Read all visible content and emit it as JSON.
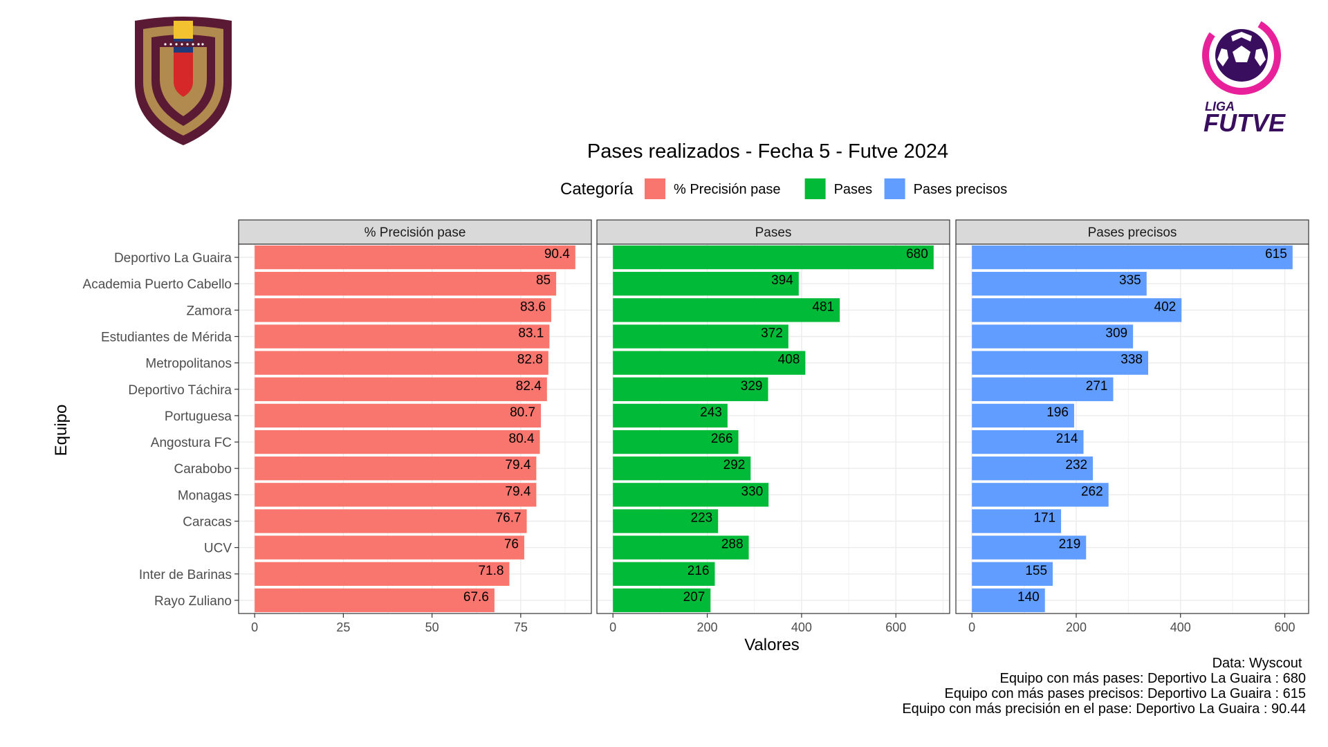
{
  "chart_data": {
    "type": "bar",
    "title": "Pases realizados - Fecha 5 - Futve 2024",
    "xlabel": "Valores",
    "ylabel": "Equipo",
    "legend": {
      "title": "Categoría",
      "placement": "top",
      "entries": [
        {
          "name": "% Precisión pase",
          "color": "#F8766D"
        },
        {
          "name": "Pases",
          "color": "#00BA38"
        },
        {
          "name": "Pases precisos",
          "color": "#619CFF"
        }
      ]
    },
    "categories": [
      "Deportivo La Guaira",
      "Academia Puerto Cabello",
      "Zamora",
      "Estudiantes de Mérida",
      "Metropolitanos",
      "Deportivo Táchira",
      "Portuguesa",
      "Angostura FC",
      "Carabobo",
      "Monagas",
      "Caracas",
      "UCV",
      "Inter de Barinas",
      "Rayo Zuliano"
    ],
    "series": [
      {
        "name": "% Precisión pase",
        "color": "#F8766D",
        "values": [
          90.4,
          85,
          83.6,
          83.1,
          82.8,
          82.4,
          80.7,
          80.4,
          79.4,
          79.4,
          76.7,
          76,
          71.8,
          67.6
        ],
        "labels": [
          "90.4",
          "85",
          "83.6",
          "83.1",
          "82.8",
          "82.4",
          "80.7",
          "80.4",
          "79.4",
          "79.4",
          "76.7",
          "76",
          "71.8",
          "67.6"
        ],
        "xlim": [
          -4.52,
          94.92
        ],
        "ticks": [
          0,
          25,
          50,
          75
        ],
        "tick_labels": [
          "0",
          "25",
          "50",
          "75"
        ]
      },
      {
        "name": "Pases",
        "color": "#00BA38",
        "values": [
          680,
          394,
          481,
          372,
          408,
          329,
          243,
          266,
          292,
          330,
          223,
          288,
          216,
          207
        ],
        "labels": [
          "680",
          "394",
          "481",
          "372",
          "408",
          "329",
          "243",
          "266",
          "292",
          "330",
          "223",
          "288",
          "216",
          "207"
        ],
        "xlim": [
          -34,
          714
        ],
        "ticks": [
          0,
          200,
          400,
          600
        ],
        "tick_labels": [
          "0",
          "200",
          "400",
          "600"
        ]
      },
      {
        "name": "Pases precisos",
        "color": "#619CFF",
        "values": [
          615,
          335,
          402,
          309,
          338,
          271,
          196,
          214,
          232,
          262,
          171,
          219,
          155,
          140
        ],
        "labels": [
          "615",
          "335",
          "402",
          "309",
          "338",
          "271",
          "196",
          "214",
          "232",
          "262",
          "171",
          "219",
          "155",
          "140"
        ],
        "xlim": [
          -30.75,
          645.75
        ],
        "ticks": [
          0,
          200,
          400,
          600
        ],
        "tick_labels": [
          "0",
          "200",
          "400",
          "600"
        ]
      }
    ],
    "grid": true,
    "facets": true
  },
  "caption": {
    "lines": [
      "Data: Wyscout ",
      "Equipo con más pases: Deportivo La Guaira : 680",
      "Equipo con más pases precisos: Deportivo La Guaira : 615",
      "Equipo con más precisión en el pase: Deportivo La Guaira : 90.44"
    ]
  },
  "logos": {
    "left": {
      "name": "FVF crest",
      "colors": [
        "#5B1A33",
        "#B08A4E",
        "#F2C230",
        "#1F3A7A",
        "#D62828"
      ]
    },
    "right": {
      "name": "Liga FUTVE",
      "text_top": "LIGA",
      "text_bottom": "FUTVE",
      "colors": [
        "#E8219A",
        "#3A0E5E"
      ]
    }
  }
}
